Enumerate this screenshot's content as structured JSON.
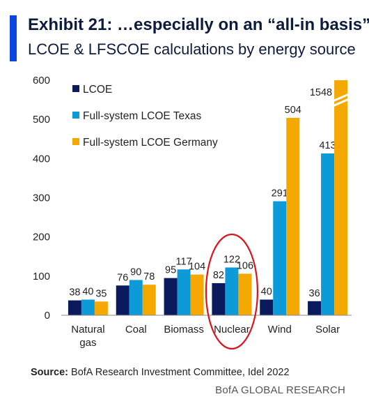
{
  "header": {
    "title": "Exhibit 21: …especially on an “all-in basis”…",
    "subtitle": "LCOE & LFSCOE calculations by energy source"
  },
  "footer": {
    "source_label": "Source:",
    "source_text": "BofA Research Investment Committee,  Idel 2022",
    "brand": "BofA GLOBAL RESEARCH"
  },
  "colors": {
    "accent": "#0a46e0",
    "lcoe": "#0b1a5c",
    "texas": "#0d9ad8",
    "germany": "#f5a800",
    "highlight_circle": "#d8141c"
  },
  "chart_data": {
    "type": "bar",
    "categories": [
      "Natural\ngas",
      "Coal",
      "Biomass",
      "Nuclear",
      "Wind",
      "Solar"
    ],
    "series": [
      {
        "name": "LCOE",
        "values": [
          38,
          76,
          95,
          82,
          40,
          36
        ],
        "color": "#0b1a5c"
      },
      {
        "name": "Full-system LCOE Texas",
        "values": [
          40,
          90,
          117,
          122,
          291,
          413
        ],
        "color": "#0d9ad8"
      },
      {
        "name": "Full-system LCOE Germany",
        "values": [
          35,
          78,
          104,
          106,
          504,
          1548
        ],
        "color": "#f5a800"
      }
    ],
    "ylim": [
      0,
      600
    ],
    "yticks": [
      0,
      100,
      200,
      300,
      400,
      500,
      600
    ],
    "axis_break": {
      "category": "Solar",
      "series": "Full-system LCOE Germany"
    },
    "highlight": "Nuclear",
    "legend_position": "top-left",
    "grid": false
  }
}
